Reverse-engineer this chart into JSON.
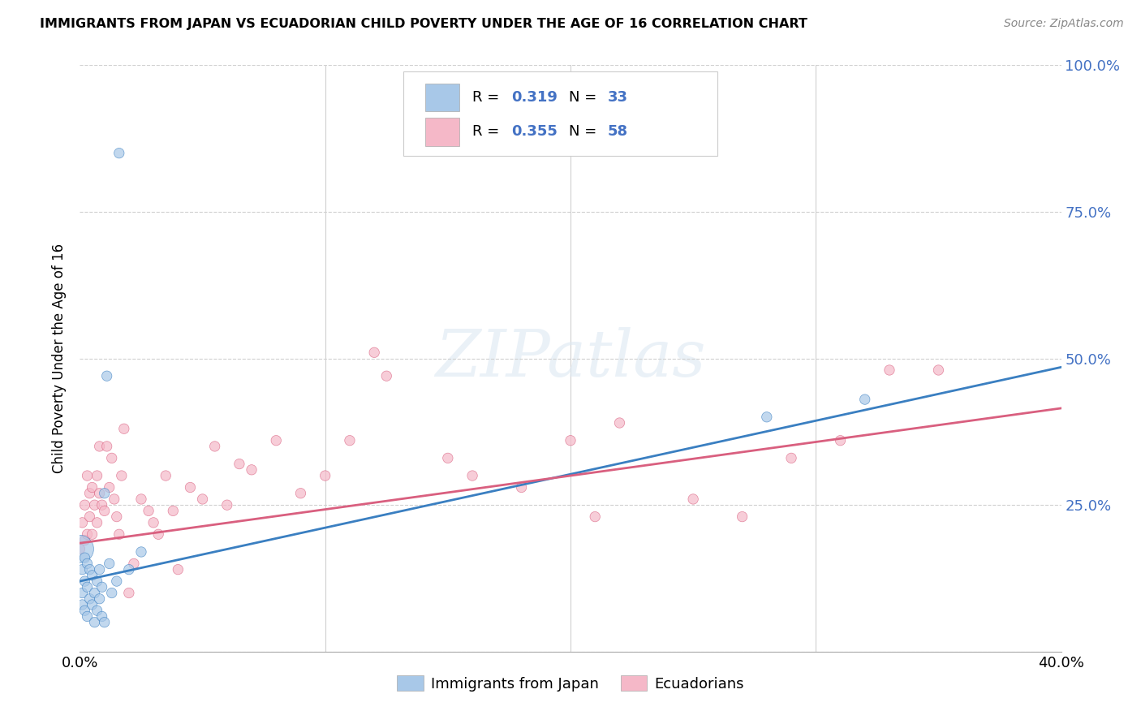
{
  "title": "IMMIGRANTS FROM JAPAN VS ECUADORIAN CHILD POVERTY UNDER THE AGE OF 16 CORRELATION CHART",
  "source": "Source: ZipAtlas.com",
  "ylabel": "Child Poverty Under the Age of 16",
  "xmin": 0.0,
  "xmax": 0.4,
  "ymin": 0.0,
  "ymax": 1.0,
  "series1_label": "Immigrants from Japan",
  "series1_R": "0.319",
  "series1_N": "33",
  "series1_color": "#a8c8e8",
  "series1_line_color": "#3a7fc1",
  "series2_label": "Ecuadorians",
  "series2_R": "0.355",
  "series2_N": "58",
  "series2_color": "#f5b8c8",
  "series2_line_color": "#d95f7f",
  "background_color": "#ffffff",
  "grid_color": "#d0d0d0",
  "axis_label_color": "#4472c4",
  "legend_number_color": "#4472c4",
  "blue_scatter_x": [
    0.0,
    0.001,
    0.001,
    0.001,
    0.002,
    0.002,
    0.002,
    0.003,
    0.003,
    0.003,
    0.004,
    0.004,
    0.005,
    0.005,
    0.006,
    0.006,
    0.007,
    0.007,
    0.008,
    0.008,
    0.009,
    0.009,
    0.01,
    0.01,
    0.011,
    0.012,
    0.013,
    0.015,
    0.016,
    0.02,
    0.025,
    0.28,
    0.32
  ],
  "blue_scatter_y": [
    0.175,
    0.14,
    0.1,
    0.08,
    0.16,
    0.12,
    0.07,
    0.15,
    0.11,
    0.06,
    0.14,
    0.09,
    0.13,
    0.08,
    0.1,
    0.05,
    0.12,
    0.07,
    0.14,
    0.09,
    0.11,
    0.06,
    0.27,
    0.05,
    0.47,
    0.15,
    0.1,
    0.12,
    0.85,
    0.14,
    0.17,
    0.4,
    0.43
  ],
  "blue_scatter_sizes": [
    600,
    80,
    80,
    80,
    80,
    80,
    80,
    80,
    80,
    80,
    80,
    80,
    80,
    80,
    80,
    80,
    80,
    80,
    80,
    80,
    80,
    80,
    80,
    80,
    80,
    80,
    80,
    80,
    80,
    80,
    80,
    80,
    80
  ],
  "pink_scatter_x": [
    0.0,
    0.001,
    0.002,
    0.002,
    0.003,
    0.003,
    0.004,
    0.004,
    0.005,
    0.005,
    0.006,
    0.007,
    0.007,
    0.008,
    0.008,
    0.009,
    0.01,
    0.011,
    0.012,
    0.013,
    0.014,
    0.015,
    0.016,
    0.017,
    0.018,
    0.02,
    0.022,
    0.025,
    0.028,
    0.03,
    0.032,
    0.035,
    0.038,
    0.04,
    0.045,
    0.05,
    0.055,
    0.06,
    0.065,
    0.07,
    0.08,
    0.09,
    0.1,
    0.11,
    0.12,
    0.15,
    0.16,
    0.18,
    0.2,
    0.21,
    0.22,
    0.25,
    0.27,
    0.29,
    0.31,
    0.33,
    0.35,
    0.125
  ],
  "pink_scatter_y": [
    0.175,
    0.22,
    0.19,
    0.25,
    0.2,
    0.3,
    0.23,
    0.27,
    0.2,
    0.28,
    0.25,
    0.3,
    0.22,
    0.27,
    0.35,
    0.25,
    0.24,
    0.35,
    0.28,
    0.33,
    0.26,
    0.23,
    0.2,
    0.3,
    0.38,
    0.1,
    0.15,
    0.26,
    0.24,
    0.22,
    0.2,
    0.3,
    0.24,
    0.14,
    0.28,
    0.26,
    0.35,
    0.25,
    0.32,
    0.31,
    0.36,
    0.27,
    0.3,
    0.36,
    0.51,
    0.33,
    0.3,
    0.28,
    0.36,
    0.23,
    0.39,
    0.26,
    0.23,
    0.33,
    0.36,
    0.48,
    0.48,
    0.47
  ],
  "pink_scatter_sizes": [
    80,
    80,
    80,
    80,
    80,
    80,
    80,
    80,
    80,
    80,
    80,
    80,
    80,
    80,
    80,
    80,
    80,
    80,
    80,
    80,
    80,
    80,
    80,
    80,
    80,
    80,
    80,
    80,
    80,
    80,
    80,
    80,
    80,
    80,
    80,
    80,
    80,
    80,
    80,
    80,
    80,
    80,
    80,
    80,
    80,
    80,
    80,
    80,
    80,
    80,
    80,
    80,
    80,
    80,
    80,
    80,
    80,
    80
  ],
  "blue_line_x": [
    0.0,
    0.4
  ],
  "blue_line_y": [
    0.12,
    0.485
  ],
  "pink_line_x": [
    0.0,
    0.4
  ],
  "pink_line_y": [
    0.185,
    0.415
  ]
}
